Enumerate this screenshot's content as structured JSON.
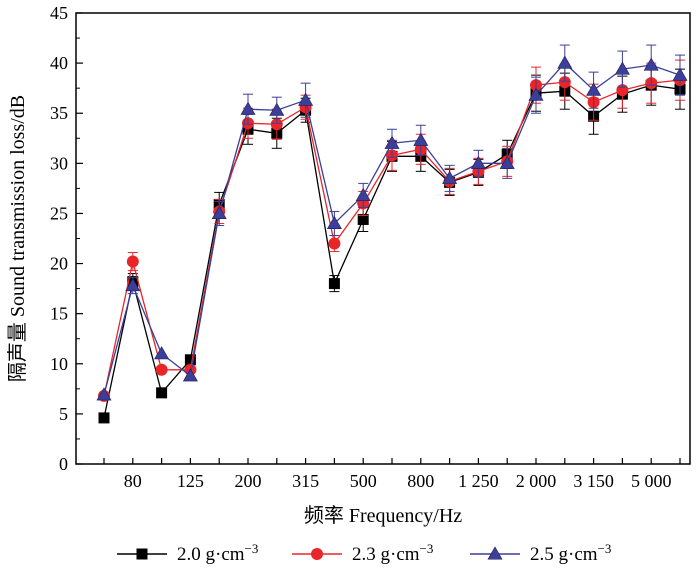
{
  "chart_data": {
    "type": "line",
    "title": "",
    "xlabel": "频率 Frequency/Hz",
    "ylabel": "隔声量 Sound transmission loss/dB",
    "ylim": [
      0,
      45
    ],
    "yticks": [
      0,
      5,
      10,
      15,
      20,
      25,
      30,
      35,
      40,
      45
    ],
    "x": [
      "63",
      "80",
      "100",
      "125",
      "160",
      "200",
      "250",
      "315",
      "400",
      "500",
      "630",
      "800",
      "1 000",
      "1 250",
      "1 600",
      "2 000",
      "2 500",
      "3 150",
      "4 000",
      "5 000",
      "6 300"
    ],
    "xtick_labels": [
      "80",
      "125",
      "200",
      "315",
      "500",
      "800",
      "1 250",
      "2 000",
      "3 150",
      "5 000"
    ],
    "legend_position": "bottom",
    "series": [
      {
        "name": "2.0 g·cm",
        "superscript": "−3",
        "color": "#000000",
        "marker": "square",
        "values": [
          4.6,
          18.2,
          7.1,
          10.4,
          25.9,
          33.4,
          33.0,
          35.3,
          18.0,
          24.4,
          30.7,
          30.7,
          28.1,
          29.1,
          30.9,
          37.0,
          37.2,
          34.7,
          36.9,
          37.8,
          37.4
        ],
        "errors": [
          0,
          0.8,
          0,
          0,
          1.2,
          1.5,
          1.5,
          1.2,
          0.8,
          1.2,
          1.5,
          1.5,
          1.3,
          1.3,
          1.4,
          1.8,
          1.8,
          1.8,
          1.8,
          2.0,
          2.0
        ]
      },
      {
        "name": "2.3 g·cm",
        "superscript": "−3",
        "color": "#e8262a",
        "marker": "circle",
        "values": [
          6.8,
          20.2,
          9.4,
          9.4,
          25.2,
          34.0,
          33.9,
          35.6,
          22.0,
          26.0,
          30.8,
          31.4,
          28.2,
          29.2,
          30.2,
          37.8,
          38.1,
          36.1,
          37.3,
          38.0,
          38.3
        ],
        "errors": [
          0,
          0.9,
          0,
          0,
          1.2,
          1.5,
          1.5,
          1.2,
          0.8,
          1.2,
          1.5,
          1.5,
          1.3,
          1.3,
          1.5,
          1.8,
          1.8,
          1.8,
          1.8,
          2.0,
          2.0
        ]
      },
      {
        "name": "2.5 g·cm",
        "superscript": "−3",
        "color": "#3b3f9a",
        "marker": "triangle",
        "values": [
          6.9,
          17.8,
          11.0,
          8.8,
          25.0,
          35.4,
          35.3,
          36.3,
          24.0,
          26.8,
          32.0,
          32.3,
          28.5,
          30.0,
          30.0,
          36.8,
          40.0,
          37.3,
          39.4,
          39.8,
          38.8
        ],
        "errors": [
          0,
          0.8,
          0,
          0,
          1.2,
          1.5,
          1.3,
          1.7,
          1.2,
          1.2,
          1.4,
          1.5,
          1.3,
          1.3,
          1.5,
          1.8,
          1.8,
          1.8,
          1.8,
          2.0,
          2.0
        ]
      }
    ]
  }
}
